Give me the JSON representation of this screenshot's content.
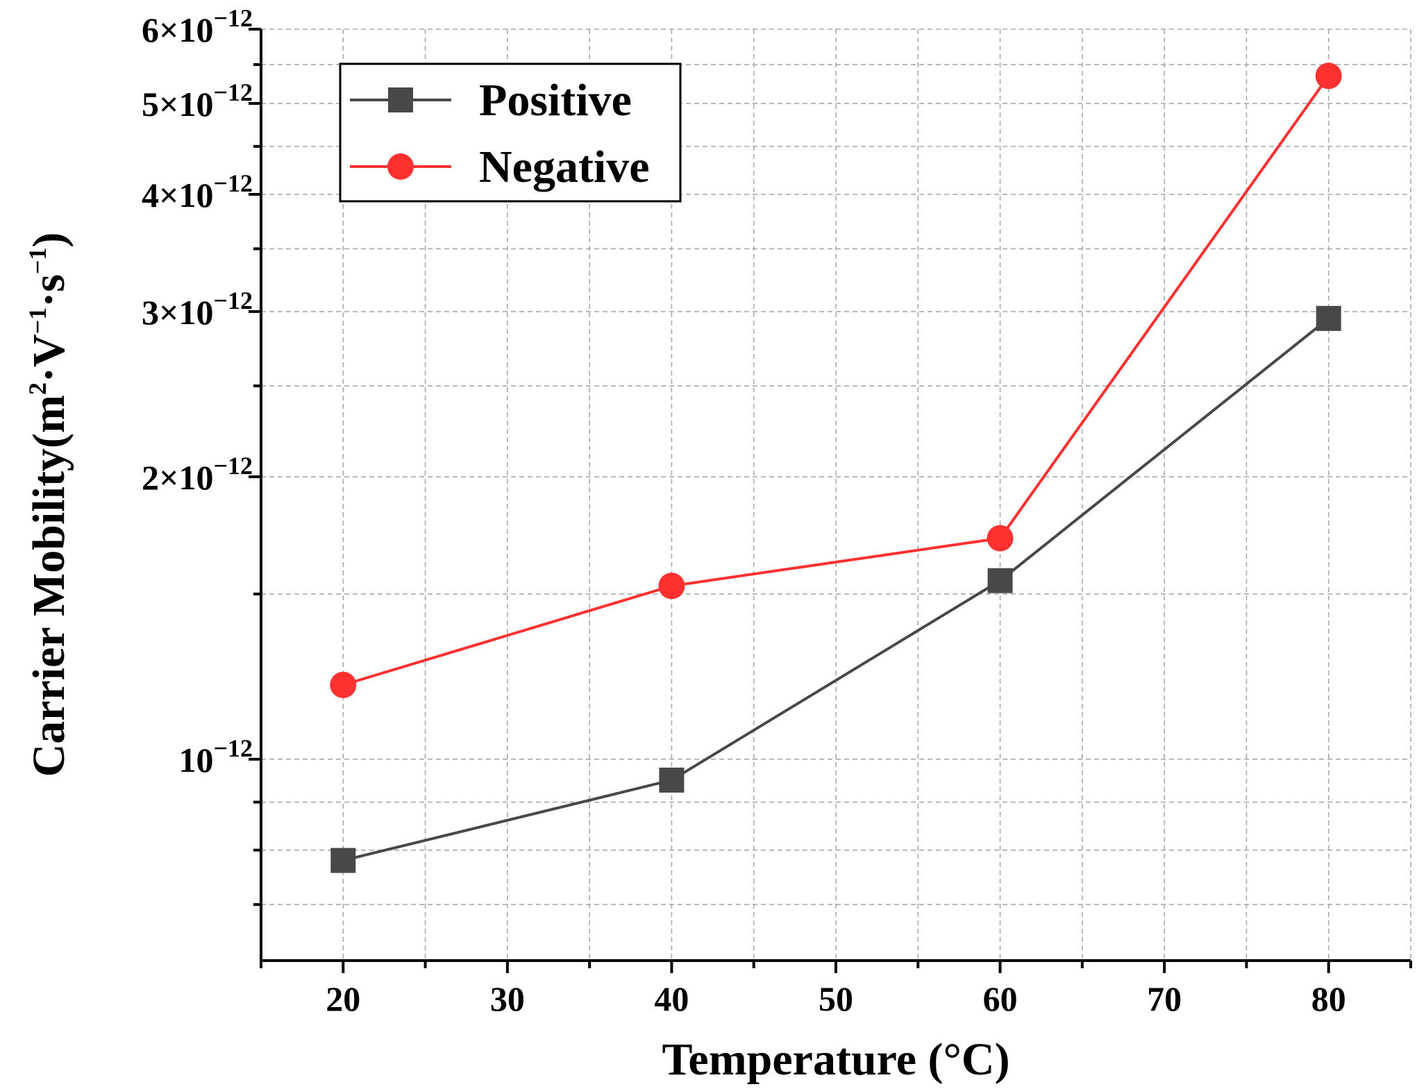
{
  "chart_data": {
    "type": "line",
    "title": "",
    "xlabel": "Temperature (°C)",
    "ylabel": {
      "prefix": "Carrier Mobility",
      "unit_parts": [
        "(m",
        "2",
        "·V",
        "−1",
        "·s",
        "−1",
        ")"
      ]
    },
    "x": [
      20,
      40,
      60,
      80
    ],
    "xlim": [
      15,
      85
    ],
    "xticks": [
      20,
      30,
      40,
      50,
      60,
      70,
      80
    ],
    "xtick_labels": [
      "20",
      "30",
      "40",
      "50",
      "60",
      "70",
      "80"
    ],
    "yscale": "log",
    "ylim": [
      6.1e-13,
      6e-12
    ],
    "yticks": [
      {
        "value": 1e-12,
        "mantissa": "",
        "base": "10",
        "exponent": "−12"
      },
      {
        "value": 2e-12,
        "mantissa": "2×",
        "base": "10",
        "exponent": "−12"
      },
      {
        "value": 3e-12,
        "mantissa": "3×",
        "base": "10",
        "exponent": "−12"
      },
      {
        "value": 4e-12,
        "mantissa": "4×",
        "base": "10",
        "exponent": "−12"
      },
      {
        "value": 5e-12,
        "mantissa": "5×",
        "base": "10",
        "exponent": "−12"
      },
      {
        "value": 6e-12,
        "mantissa": "6×",
        "base": "10",
        "exponent": "−12"
      }
    ],
    "yminor_ticks": [
      7e-13,
      8e-13,
      9e-13,
      1.5e-12,
      2.5e-12,
      3.5e-12,
      4.5e-12,
      5.5e-12
    ],
    "grid": true,
    "legend_position": "top-left",
    "series": [
      {
        "name": "Positive",
        "marker": "square",
        "color": "#484848",
        "values": [
          7.8e-13,
          9.5e-13,
          1.55e-12,
          2.95e-12
        ]
      },
      {
        "name": "Negative",
        "marker": "circle",
        "color": "#ff3030",
        "values": [
          1.2e-12,
          1.53e-12,
          1.72e-12,
          5.35e-12
        ]
      }
    ]
  },
  "colors": {
    "positive": "#484848",
    "negative": "#ff3030",
    "grid": "#a9a9a9",
    "axis": "#000000"
  }
}
